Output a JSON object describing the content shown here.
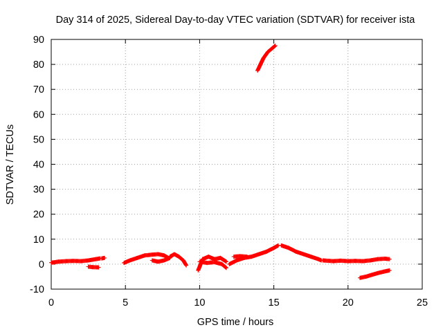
{
  "chart_data": {
    "type": "scatter",
    "title": "Day 314 of 2025, Sidereal Day-to-day VTEC variation (SDTVAR) for receiver ista",
    "xlabel": "GPS time / hours",
    "ylabel": "SDTVAR / TECUs",
    "xlim": [
      0,
      25
    ],
    "ylim": [
      -10,
      90
    ],
    "xticks": [
      0,
      5,
      10,
      15,
      20,
      25
    ],
    "yticks": [
      -10,
      0,
      10,
      20,
      30,
      40,
      50,
      60,
      70,
      80,
      90
    ],
    "grid": true,
    "legend": "none",
    "marker": "+",
    "color": "#ff0000",
    "series": [
      {
        "name": "arc-1",
        "x": [
          0.0,
          0.5,
          1.0,
          1.5,
          2.0,
          2.5,
          3.0,
          3.3
        ],
        "y": [
          0.6,
          1.0,
          1.2,
          1.3,
          1.2,
          1.5,
          2.0,
          2.3
        ]
      },
      {
        "name": "arc-2",
        "x": [
          2.5,
          2.8,
          3.2
        ],
        "y": [
          -1.0,
          -1.2,
          -1.3
        ]
      },
      {
        "name": "arc-3",
        "x": [
          3.4,
          3.6
        ],
        "y": [
          2.3,
          2.5
        ]
      },
      {
        "name": "arc-4",
        "x": [
          4.9,
          5.3,
          5.8,
          6.3,
          6.8,
          7.2,
          7.6,
          7.9
        ],
        "y": [
          0.5,
          1.5,
          2.5,
          3.5,
          3.8,
          4.0,
          3.5,
          2.5
        ]
      },
      {
        "name": "arc-5",
        "x": [
          6.8,
          7.2,
          7.6,
          8.0
        ],
        "y": [
          1.5,
          1.0,
          1.5,
          2.5
        ]
      },
      {
        "name": "arc-6",
        "x": [
          8.0,
          8.3,
          8.6,
          8.9,
          9.1
        ],
        "y": [
          3.0,
          4.0,
          3.0,
          1.5,
          -0.5
        ]
      },
      {
        "name": "arc-7",
        "x": [
          9.9,
          10.2,
          10.6,
          11.0,
          11.4,
          11.8
        ],
        "y": [
          -2.5,
          2.0,
          3.0,
          2.0,
          2.5,
          1.0
        ]
      },
      {
        "name": "arc-8",
        "x": [
          10.0,
          10.5,
          11.0,
          11.5,
          11.8
        ],
        "y": [
          1.0,
          0.5,
          0.8,
          0.0,
          -1.5
        ]
      },
      {
        "name": "arc-9",
        "x": [
          12.0,
          12.5,
          13.0,
          13.5,
          14.0,
          14.5,
          15.0,
          15.3
        ],
        "y": [
          0.0,
          1.5,
          2.5,
          3.0,
          4.0,
          5.0,
          6.5,
          7.5
        ]
      },
      {
        "name": "arc-10",
        "x": [
          12.3,
          12.7,
          13.2
        ],
        "y": [
          3.0,
          3.2,
          3.0
        ]
      },
      {
        "name": "arc-11",
        "x": [
          15.5,
          16.0,
          16.5,
          17.0,
          17.5,
          18.0,
          18.2
        ],
        "y": [
          7.5,
          6.5,
          5.0,
          4.0,
          3.0,
          2.0,
          1.5
        ]
      },
      {
        "name": "arc-12",
        "x": [
          18.3,
          19.0,
          19.5,
          20.0,
          20.5,
          21.0,
          21.5,
          22.0,
          22.5,
          22.8
        ],
        "y": [
          1.5,
          1.2,
          1.4,
          1.2,
          1.3,
          1.2,
          1.5,
          2.0,
          2.2,
          2.0
        ]
      },
      {
        "name": "arc-13",
        "x": [
          20.8,
          21.2,
          21.6,
          22.0,
          22.4,
          22.8
        ],
        "y": [
          -5.5,
          -5.0,
          -4.3,
          -3.6,
          -3.0,
          -2.5
        ]
      },
      {
        "name": "arc-14",
        "x": [
          13.9,
          14.1,
          14.3,
          14.6,
          14.9,
          15.1
        ],
        "y": [
          77.5,
          80.0,
          82.5,
          85.0,
          86.5,
          87.5
        ]
      }
    ]
  }
}
